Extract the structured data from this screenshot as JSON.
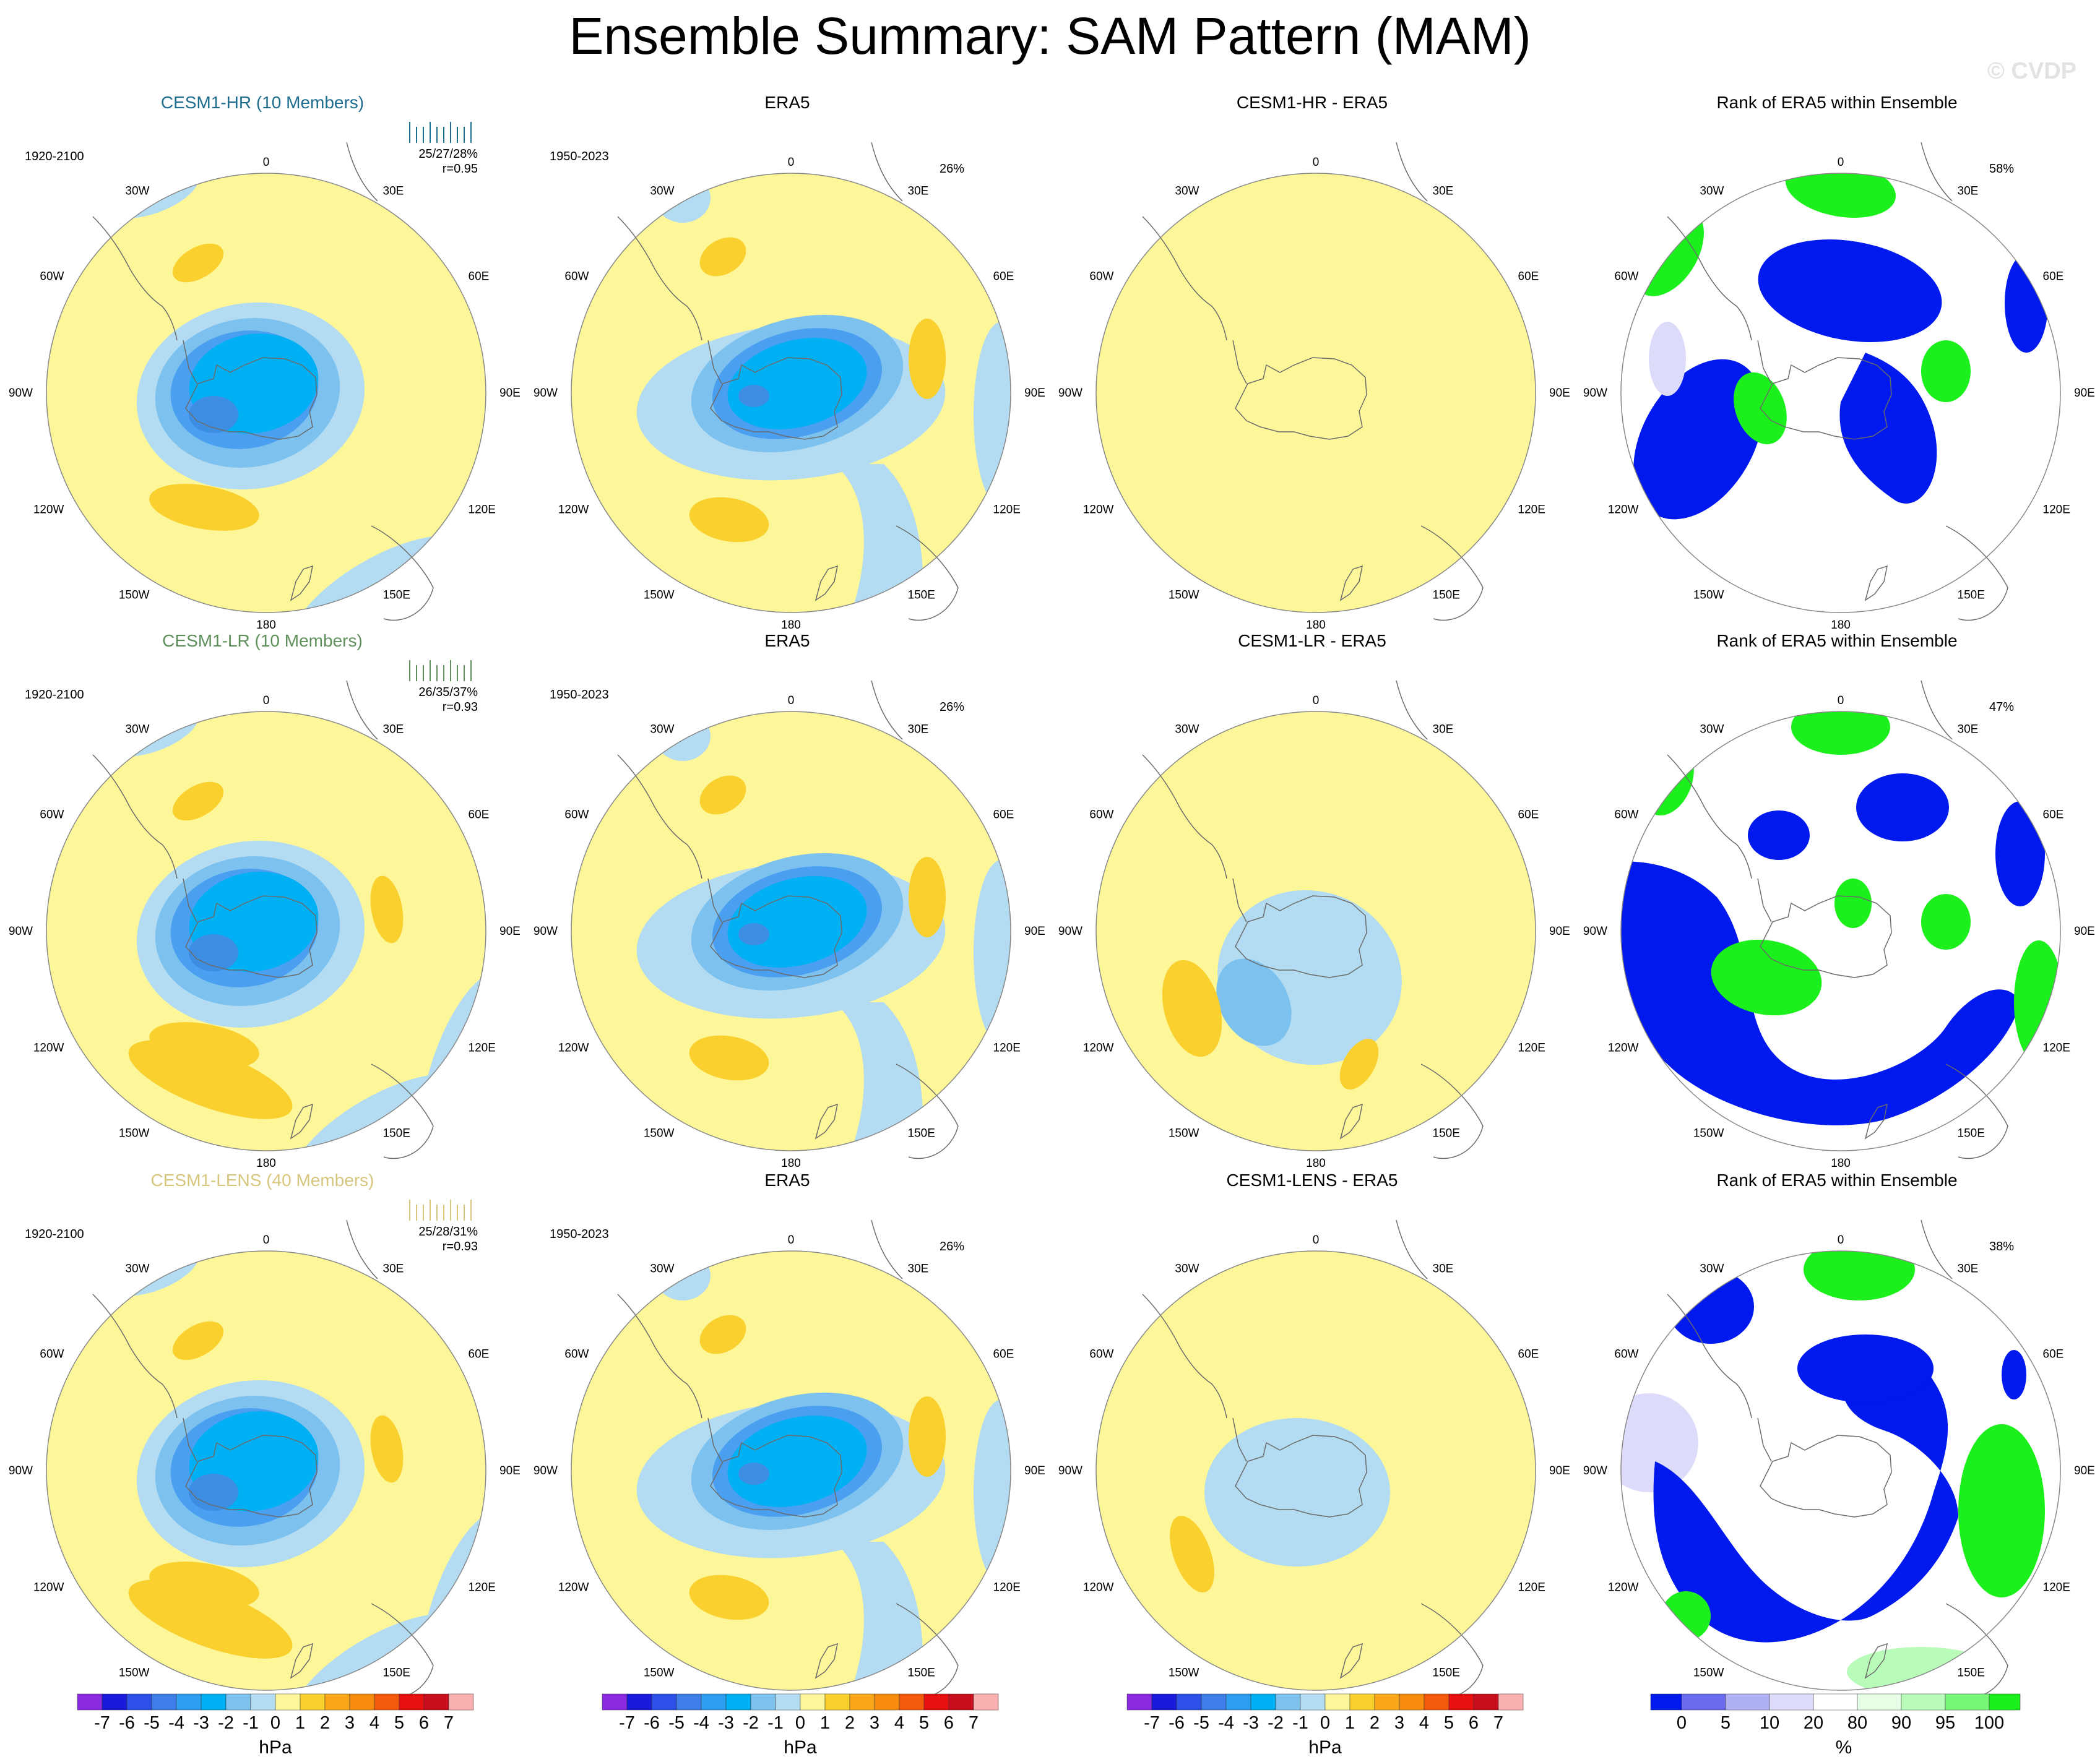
{
  "title": "Ensemble Summary: SAM Pattern (MAM)",
  "watermark": "© CVDP",
  "map_labels": {
    "lon_0": "0",
    "lon_30e": "30E",
    "lon_60e": "60E",
    "lon_90e": "90E",
    "lon_120e": "120E",
    "lon_150e": "150E",
    "lon_180": "180",
    "lon_150w": "150W",
    "lon_120w": "120W",
    "lon_90w": "90W",
    "lon_60w": "60W",
    "lon_30w": "30W"
  },
  "colors": {
    "ocean_yellow": "#fdf79a",
    "light_blue": "#b3dcf2",
    "mid_blue": "#7dc2ef",
    "sky_blue": "#00b0f5",
    "deep_blue": "#3d8ee3",
    "orange": "#fad02e",
    "rank_blue": "#0019ee",
    "rank_green": "#1cf01c",
    "rank_light_green": "#b9fcb9",
    "rank_lavender": "#dcdcfa"
  },
  "rows": [
    {
      "model_title": "CESM1-HR (10 Members)",
      "model_color": "#1f6d8e",
      "model_period": "1920-2100",
      "model_pct": "25/27/28%",
      "model_r": "r=0.95",
      "obs_title": "ERA5",
      "obs_period": "1950-2023",
      "obs_pct": "26%",
      "diff_title": "CESM1-HR - ERA5",
      "rank_title": "Rank of ERA5 within Ensemble",
      "rank_pct": "58%"
    },
    {
      "model_title": "CESM1-LR (10 Members)",
      "model_color": "#5e8f5b",
      "model_period": "1920-2100",
      "model_pct": "26/35/37%",
      "model_r": "r=0.93",
      "obs_title": "ERA5",
      "obs_period": "1950-2023",
      "obs_pct": "26%",
      "diff_title": "CESM1-LR - ERA5",
      "rank_title": "Rank of ERA5 within Ensemble",
      "rank_pct": "47%"
    },
    {
      "model_title": "CESM1-LENS (40 Members)",
      "model_color": "#d6c67d",
      "model_period": "1920-2100",
      "model_pct": "25/28/31%",
      "model_r": "r=0.93",
      "obs_title": "ERA5",
      "obs_period": "1950-2023",
      "obs_pct": "26%",
      "diff_title": "CESM1-LENS - ERA5",
      "rank_title": "Rank of ERA5 within Ensemble",
      "rank_pct": "38%"
    }
  ],
  "hpa_colorbar": {
    "unit": "hPa",
    "tick_labels": [
      "-7",
      "-6",
      "-5",
      "-4",
      "-3",
      "-2",
      "-1",
      "0",
      "1",
      "2",
      "3",
      "4",
      "5",
      "6",
      "7"
    ],
    "colors": [
      "#8a2be2",
      "#1a1adc",
      "#2d50e8",
      "#3f7ee8",
      "#2f9ff2",
      "#00b0f5",
      "#7dc2ef",
      "#b3dcf2",
      "#fdf79a",
      "#fad02e",
      "#f9a718",
      "#f78c10",
      "#f55b0c",
      "#e81010",
      "#c80e1c",
      "#fbb0b0"
    ]
  },
  "pct_colorbar": {
    "unit": "%",
    "tick_labels": [
      "0",
      "5",
      "10",
      "20",
      "80",
      "90",
      "95",
      "100"
    ],
    "colors": [
      "#0019ee",
      "#6b6bf0",
      "#b0b0f5",
      "#dcdcfa",
      "#ffffff",
      "#e6fde6",
      "#b9fcb9",
      "#76f576",
      "#1cf01c"
    ]
  }
}
